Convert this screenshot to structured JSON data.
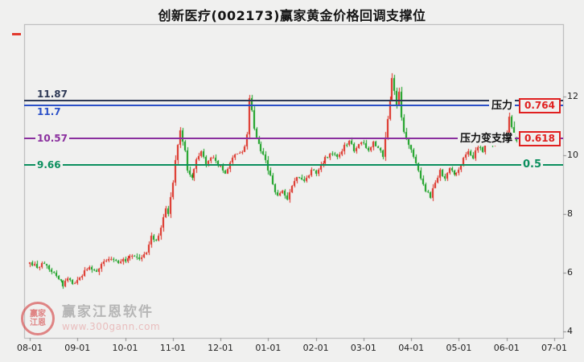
{
  "title": "创新医疗(002173)赢家黄金价格回调支撑位",
  "watermark": {
    "brand": "赢家江恩软件",
    "url": "www.300gann.com",
    "logo_text": "赢家江恩"
  },
  "chart_data": {
    "type": "candlestick",
    "title": "创新医疗(002173)赢家黄金价格回调支撑位",
    "xlabel": "",
    "ylabel": "",
    "x_labels": [
      "08-01",
      "09-01",
      "10-01",
      "11-01",
      "12-01",
      "01-01",
      "02-01",
      "03-01",
      "04-01",
      "05-01",
      "06-01",
      "07-01"
    ],
    "y_ticks": [
      4,
      6,
      8,
      10,
      12
    ],
    "y_range": [
      3.78,
      14.47
    ],
    "grid": false,
    "up_color": "#dc2a1e",
    "down_color": "#0f9d1a",
    "candle_count": 205,
    "price_path_anchors": [
      [
        0,
        6.3
      ],
      [
        3,
        6.2
      ],
      [
        6,
        6.35
      ],
      [
        9,
        6.05
      ],
      [
        12,
        5.8
      ],
      [
        14,
        5.6
      ],
      [
        16,
        5.78
      ],
      [
        18,
        5.62
      ],
      [
        20,
        5.72
      ],
      [
        22,
        5.95
      ],
      [
        25,
        6.2
      ],
      [
        28,
        6.08
      ],
      [
        31,
        6.35
      ],
      [
        34,
        6.5
      ],
      [
        37,
        6.38
      ],
      [
        40,
        6.45
      ],
      [
        43,
        6.6
      ],
      [
        46,
        6.5
      ],
      [
        49,
        6.65
      ],
      [
        51,
        7.2
      ],
      [
        53,
        7.1
      ],
      [
        55,
        7.5
      ],
      [
        57,
        8.25
      ],
      [
        58,
        8.05
      ],
      [
        59,
        8.6
      ],
      [
        60,
        9.1
      ],
      [
        61,
        9.8
      ],
      [
        62,
        10.4
      ],
      [
        63,
        10.8
      ],
      [
        65,
        10.15
      ],
      [
        66,
        9.55
      ],
      [
        68,
        9.2
      ],
      [
        70,
        9.9
      ],
      [
        72,
        10.15
      ],
      [
        74,
        9.7
      ],
      [
        76,
        9.95
      ],
      [
        78,
        9.8
      ],
      [
        80,
        9.6
      ],
      [
        82,
        9.4
      ],
      [
        84,
        9.8
      ],
      [
        86,
        10.05
      ],
      [
        88,
        10.1
      ],
      [
        90,
        10.25
      ],
      [
        91,
        10.75
      ],
      [
        92,
        11.95
      ],
      [
        93,
        11.55
      ],
      [
        94,
        10.9
      ],
      [
        96,
        10.35
      ],
      [
        98,
        10.05
      ],
      [
        100,
        9.55
      ],
      [
        102,
        9.0
      ],
      [
        104,
        8.6
      ],
      [
        106,
        8.82
      ],
      [
        108,
        8.5
      ],
      [
        110,
        8.95
      ],
      [
        112,
        9.28
      ],
      [
        115,
        9.1
      ],
      [
        118,
        9.48
      ],
      [
        120,
        9.42
      ],
      [
        123,
        9.78
      ],
      [
        126,
        10.08
      ],
      [
        129,
        9.92
      ],
      [
        132,
        10.32
      ],
      [
        134,
        10.48
      ],
      [
        136,
        10.18
      ],
      [
        138,
        10.35
      ],
      [
        140,
        10.42
      ],
      [
        142,
        10.12
      ],
      [
        144,
        10.45
      ],
      [
        146,
        10.25
      ],
      [
        148,
        10.0
      ],
      [
        149,
        10.55
      ],
      [
        150,
        11.2
      ],
      [
        151,
        11.9
      ],
      [
        152,
        12.6
      ],
      [
        153,
        12.2
      ],
      [
        154,
        11.7
      ],
      [
        155,
        12.15
      ],
      [
        156,
        11.3
      ],
      [
        157,
        10.8
      ],
      [
        158,
        10.5
      ],
      [
        160,
        10.2
      ],
      [
        162,
        9.7
      ],
      [
        164,
        9.2
      ],
      [
        166,
        8.8
      ],
      [
        168,
        8.6
      ],
      [
        170,
        9.1
      ],
      [
        172,
        9.45
      ],
      [
        174,
        9.2
      ],
      [
        176,
        9.6
      ],
      [
        178,
        9.3
      ],
      [
        180,
        9.55
      ],
      [
        182,
        9.9
      ],
      [
        184,
        10.15
      ],
      [
        186,
        9.95
      ],
      [
        188,
        10.3
      ],
      [
        190,
        10.15
      ],
      [
        192,
        10.5
      ],
      [
        194,
        10.35
      ],
      [
        196,
        10.6
      ],
      [
        198,
        10.5
      ],
      [
        200,
        10.7
      ],
      [
        201,
        11.3
      ],
      [
        202,
        10.95
      ],
      [
        203,
        10.6
      ],
      [
        204,
        10.45
      ]
    ],
    "levels": [
      {
        "label": "11.87",
        "value": 11.87,
        "color": "#2f3a56",
        "label_side": "above"
      },
      {
        "label": "11.7",
        "value": 11.7,
        "color": "#2b50c8",
        "label_side": "below"
      },
      {
        "label": "10.57",
        "value": 10.57,
        "color": "#8a2f9e",
        "label_side": "center"
      },
      {
        "label": "9.66",
        "value": 9.66,
        "color": "#0b8f5e",
        "label_side": "center"
      }
    ],
    "annotations": [
      {
        "label": "压力",
        "value": "0.764",
        "boxed": true,
        "level": 11.7,
        "color": "#e02020"
      },
      {
        "label": "压力变支撑",
        "value": "0.618",
        "boxed": true,
        "level": 10.57,
        "color": "#e02020"
      },
      {
        "label": "",
        "value": "0.5",
        "boxed": false,
        "level": 9.66,
        "color": "#0b8f5e"
      }
    ]
  }
}
